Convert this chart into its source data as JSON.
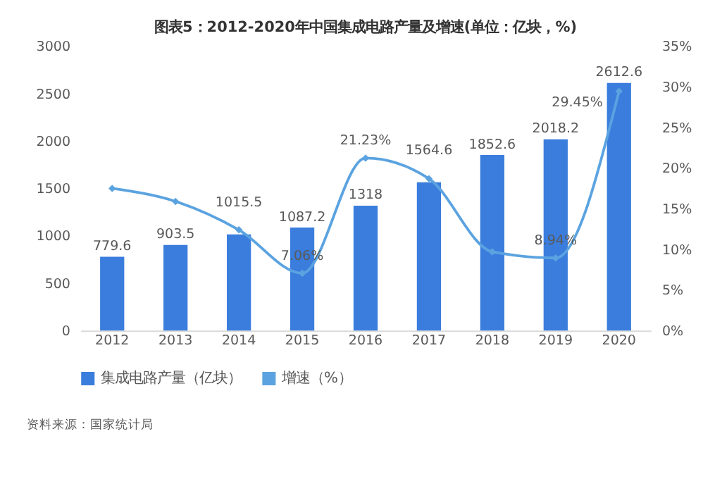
{
  "chart_data": {
    "type": "bar",
    "title": "图表5：2012-2020年中国集成电路产量及增速(单位：亿块，%)",
    "categories": [
      "2012",
      "2013",
      "2014",
      "2015",
      "2016",
      "2017",
      "2018",
      "2019",
      "2020"
    ],
    "series": [
      {
        "name": "集成电路产量（亿块）",
        "color": "#3b7ddd",
        "values": [
          779.6,
          903.5,
          1015.5,
          1087.2,
          1318,
          1564.6,
          1852.6,
          2018.2,
          2612.6
        ],
        "value_labels": [
          "779.6",
          "903.5",
          "1015.5",
          "1087.2",
          "1318",
          "1564.6",
          "1852.6",
          "2018.2",
          "2612.6"
        ]
      },
      {
        "name": "增速（%）",
        "type": "line",
        "axis": "y2",
        "color": "#5ba3e0",
        "marker": "diamond",
        "values": [
          17.5,
          15.9,
          12.4,
          7.06,
          21.23,
          18.7,
          9.7,
          8.94,
          29.45
        ],
        "value_labels": [
          null,
          null,
          null,
          "7.06%",
          "21.23%",
          null,
          null,
          "8.94%",
          "29.45%"
        ]
      }
    ],
    "ylim": [
      0,
      3000
    ],
    "yticks": [
      0,
      500,
      1000,
      1500,
      2000,
      2500,
      3000
    ],
    "y2lim": [
      0,
      35
    ],
    "y2ticks": [
      {
        "value": 0,
        "label": "0%"
      },
      {
        "value": 5,
        "label": "5%"
      },
      {
        "value": 10,
        "label": "10%"
      },
      {
        "value": 15,
        "label": "15%"
      },
      {
        "value": 20,
        "label": "20%"
      },
      {
        "value": 25,
        "label": "25%"
      },
      {
        "value": 30,
        "label": "30%"
      },
      {
        "value": 35,
        "label": "35%"
      }
    ],
    "grid": false,
    "legend": "bottom",
    "annotations": [
      "资料来源：国家统计局"
    ]
  }
}
